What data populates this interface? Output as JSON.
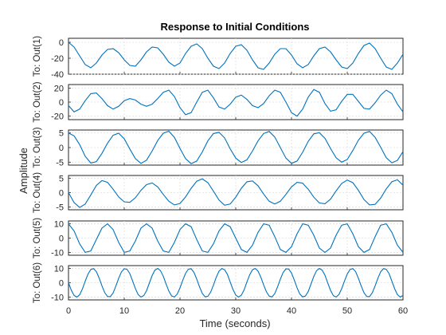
{
  "colors": {
    "trace": "#0072BD",
    "grid": "#dfdfdf",
    "axis": "#262626"
  },
  "chart_data": {
    "type": "line",
    "title": "Response to Initial Conditions",
    "xlabel": "Time (seconds)",
    "ylabel": "Amplitude",
    "xlim": [
      0,
      60
    ],
    "x_ticks": [
      "0",
      "10",
      "20",
      "30",
      "40",
      "50",
      "60"
    ],
    "grid": true,
    "series": [
      {
        "name": "To: Out(1)",
        "ylim": [
          -40,
          5
        ],
        "y_ticks": [
          {
            "v": 0,
            "t": "0"
          },
          {
            "v": -20,
            "t": "-20"
          },
          {
            "v": -40,
            "t": "-40"
          }
        ],
        "x": [
          0,
          1,
          2,
          3,
          4,
          5,
          6,
          7,
          8,
          9,
          10,
          11,
          12,
          13,
          14,
          15,
          16,
          17,
          18,
          19,
          20,
          21,
          22,
          23,
          24,
          25,
          26,
          27,
          28,
          29,
          30,
          31,
          32,
          33,
          34,
          35,
          36,
          37,
          38,
          39,
          40,
          41,
          42,
          43,
          44,
          45,
          46,
          47,
          48,
          49,
          50,
          51,
          52,
          53,
          54,
          55,
          56,
          57,
          58,
          59,
          60
        ],
        "y": [
          0,
          -6,
          -17,
          -28,
          -32,
          -26,
          -16,
          -9,
          -8,
          -13,
          -22,
          -29,
          -30,
          -22,
          -12,
          -6,
          -7,
          -15,
          -25,
          -30,
          -26,
          -14,
          -5,
          -2,
          -8,
          -20,
          -30,
          -33,
          -26,
          -14,
          -5,
          -3,
          -10,
          -22,
          -32,
          -34,
          -26,
          -15,
          -8,
          -8,
          -16,
          -27,
          -32,
          -28,
          -17,
          -8,
          -6,
          -12,
          -22,
          -31,
          -33,
          -26,
          -14,
          -4,
          -1,
          -8,
          -20,
          -31,
          -34,
          -26,
          -15
        ]
      },
      {
        "name": "To: Out(2)",
        "ylim": [
          -25,
          25
        ],
        "y_ticks": [
          {
            "v": 20,
            "t": "20"
          },
          {
            "v": 0,
            "t": "0"
          },
          {
            "v": -20,
            "t": "-20"
          }
        ],
        "x": [
          0,
          1,
          2,
          3,
          4,
          5,
          6,
          7,
          8,
          9,
          10,
          11,
          12,
          13,
          14,
          15,
          16,
          17,
          18,
          19,
          20,
          21,
          22,
          23,
          24,
          25,
          26,
          27,
          28,
          29,
          30,
          31,
          32,
          33,
          34,
          35,
          36,
          37,
          38,
          39,
          40,
          41,
          42,
          43,
          44,
          45,
          46,
          47,
          48,
          49,
          50,
          51,
          52,
          53,
          54,
          55,
          56,
          57,
          58,
          59,
          60
        ],
        "y": [
          -5,
          -14,
          -10,
          2,
          12,
          13,
          5,
          -5,
          -10,
          -6,
          2,
          5,
          3,
          -3,
          -6,
          -3,
          5,
          14,
          17,
          8,
          -8,
          -18,
          -15,
          0,
          14,
          17,
          6,
          -7,
          -10,
          -3,
          7,
          10,
          4,
          -5,
          -8,
          -2,
          9,
          17,
          14,
          0,
          -15,
          -20,
          -10,
          7,
          18,
          14,
          -2,
          -13,
          -11,
          1,
          11,
          11,
          1,
          -9,
          -10,
          -1,
          10,
          17,
          12,
          -3,
          -14
        ]
      },
      {
        "name": "To: Out(3)",
        "ylim": [
          -6,
          6
        ],
        "y_ticks": [
          {
            "v": 5,
            "t": "5"
          },
          {
            "v": 0,
            "t": "0"
          },
          {
            "v": -5,
            "t": "-5"
          }
        ],
        "x": [
          0,
          1,
          2,
          3,
          4,
          5,
          6,
          7,
          8,
          9,
          10,
          11,
          12,
          13,
          14,
          15,
          16,
          17,
          18,
          19,
          20,
          21,
          22,
          23,
          24,
          25,
          26,
          27,
          28,
          29,
          30,
          31,
          32,
          33,
          34,
          35,
          36,
          37,
          38,
          39,
          40,
          41,
          42,
          43,
          44,
          45,
          46,
          47,
          48,
          49,
          50,
          51,
          52,
          53,
          54,
          55,
          56,
          57,
          58,
          59,
          60
        ],
        "y": [
          5,
          4,
          1,
          -3,
          -5.3,
          -4.8,
          -2,
          1.5,
          4.2,
          4.9,
          3,
          -0.5,
          -3.8,
          -5.4,
          -4.3,
          -1.2,
          2.4,
          4.9,
          5.6,
          3.5,
          -0.3,
          -3.8,
          -5.5,
          -4.6,
          -1.5,
          2.3,
          4.8,
          5.2,
          3.3,
          -0.4,
          -3.6,
          -5.1,
          -4.2,
          -1.2,
          2.3,
          4.8,
          5.5,
          3.6,
          0,
          -3.6,
          -5.4,
          -4.6,
          -1.6,
          2.1,
          4.7,
          5.1,
          3.2,
          -0.3,
          -3.5,
          -5,
          -4.1,
          -1,
          2.5,
          4.9,
          5.5,
          3.5,
          0.1,
          -3.5,
          -5.2,
          -4.4,
          -1.4
        ]
      },
      {
        "name": "To: Out(4)",
        "ylim": [
          -6,
          6
        ],
        "y_ticks": [
          {
            "v": 5,
            "t": "5"
          },
          {
            "v": 0,
            "t": "0"
          },
          {
            "v": -5,
            "t": "-5"
          }
        ],
        "x": [
          0,
          1,
          2,
          3,
          4,
          5,
          6,
          7,
          8,
          9,
          10,
          11,
          12,
          13,
          14,
          15,
          16,
          17,
          18,
          19,
          20,
          21,
          22,
          23,
          24,
          25,
          26,
          27,
          28,
          29,
          30,
          31,
          32,
          33,
          34,
          35,
          36,
          37,
          38,
          39,
          40,
          41,
          42,
          43,
          44,
          45,
          46,
          47,
          48,
          49,
          50,
          51,
          52,
          53,
          54,
          55,
          56,
          57,
          58,
          59,
          60
        ],
        "y": [
          0,
          -3.5,
          -5.2,
          -4,
          -0.8,
          2.5,
          4.2,
          3.6,
          1.2,
          -1.5,
          -3.2,
          -3.4,
          -1.8,
          0.8,
          2.8,
          3.4,
          2,
          -0.6,
          -3,
          -4.3,
          -3.8,
          -1.5,
          1.5,
          4,
          4.8,
          3.5,
          0.5,
          -2.6,
          -4.4,
          -4,
          -1.6,
          1.5,
          3.8,
          4.1,
          2.4,
          -0.5,
          -3,
          -4,
          -3,
          -0.6,
          2,
          3.6,
          3.3,
          1.2,
          -1.6,
          -3.6,
          -3.9,
          -2.3,
          0.6,
          3.2,
          4.4,
          3.5,
          0.8,
          -2.4,
          -4.3,
          -4.1,
          -1.9,
          1.3,
          3.8,
          4.5,
          2.6
        ]
      },
      {
        "name": "To: Out(5)",
        "ylim": [
          -12,
          12
        ],
        "y_ticks": [
          {
            "v": 10,
            "t": "10"
          },
          {
            "v": 0,
            "t": "0"
          },
          {
            "v": -10,
            "t": "-10"
          }
        ],
        "x": [
          0,
          1,
          2,
          3,
          4,
          5,
          6,
          7,
          8,
          9,
          10,
          11,
          12,
          13,
          14,
          15,
          16,
          17,
          18,
          19,
          20,
          21,
          22,
          23,
          24,
          25,
          26,
          27,
          28,
          29,
          30,
          31,
          32,
          33,
          34,
          35,
          36,
          37,
          38,
          39,
          40,
          41,
          42,
          43,
          44,
          45,
          46,
          47,
          48,
          49,
          50,
          51,
          52,
          53,
          54,
          55,
          56,
          57,
          58,
          59,
          60
        ],
        "y": [
          10,
          5,
          -4,
          -10,
          -9,
          -1,
          7,
          10,
          6,
          -3,
          -10,
          -9,
          -2,
          7,
          10,
          7,
          -2,
          -9,
          -10,
          -3,
          6,
          10,
          8,
          -1,
          -9,
          -10,
          -4,
          5,
          10,
          8,
          0,
          -8,
          -10,
          -5,
          4,
          10,
          9,
          1,
          -8,
          -10,
          -6,
          3,
          10,
          9,
          2,
          -7,
          -10,
          -7,
          2,
          9,
          10,
          3,
          -6,
          -10,
          -8,
          1,
          9,
          10,
          4,
          -5,
          -10
        ]
      },
      {
        "name": "To: Out(6)",
        "ylim": [
          -12,
          12
        ],
        "y_ticks": [
          {
            "v": 10,
            "t": "10"
          },
          {
            "v": 0,
            "t": "0"
          },
          {
            "v": -10,
            "t": "-10"
          }
        ],
        "x": [
          0,
          0.5,
          1,
          1.5,
          2,
          2.5,
          3,
          3.5,
          4,
          4.5,
          5,
          5.5,
          6,
          6.5,
          7,
          7.5,
          8,
          8.5,
          9,
          9.5,
          10,
          10.5,
          11,
          11.5,
          12,
          12.5,
          13,
          13.5,
          14,
          14.5,
          15,
          15.5,
          16,
          16.5,
          17,
          17.5,
          18,
          18.5,
          19,
          19.5,
          20,
          20.5,
          21,
          21.5,
          22,
          22.5,
          23,
          23.5,
          24,
          24.5,
          25,
          25.5,
          26,
          26.5,
          27,
          27.5,
          28,
          28.5,
          29,
          29.5,
          30,
          30.5,
          31,
          31.5,
          32,
          32.5,
          33,
          33.5,
          34,
          34.5,
          35,
          35.5,
          36,
          36.5,
          37,
          37.5,
          38,
          38.5,
          39,
          39.5,
          40,
          40.5,
          41,
          41.5,
          42,
          42.5,
          43,
          43.5,
          44,
          44.5,
          45,
          45.5,
          46,
          46.5,
          47,
          47.5,
          48,
          48.5,
          49,
          49.5,
          50,
          50.5,
          51,
          51.5,
          52,
          52.5,
          53,
          53.5,
          54,
          54.5,
          55,
          55.5,
          56,
          56.5,
          57,
          57.5,
          58,
          58.5,
          59,
          59.5,
          60
        ],
        "y": [
          0,
          -5.2,
          -8.9,
          -10,
          -8.4,
          -4.3,
          1.1,
          6.1,
          9.3,
          9.9,
          7.8,
          3.3,
          -2.1,
          -6.9,
          -9.6,
          -9.7,
          -7.2,
          -2.3,
          3.1,
          7.6,
          9.8,
          9.4,
          6.4,
          1.3,
          -4.1,
          -8.3,
          -10,
          -9,
          -5.6,
          -0.3,
          5,
          8.8,
          10,
          8.5,
          4.6,
          -0.8,
          -5.8,
          -9.2,
          -10,
          -7.9,
          -3.6,
          1.8,
          6.6,
          9.5,
          9.8,
          7.3,
          2.6,
          -2.8,
          -7.4,
          -9.8,
          -9.5,
          -6.6,
          -1.6,
          3.8,
          8.1,
          10,
          9.1,
          5.9,
          0.6,
          -4.7,
          -8.6,
          -10,
          -8.7,
          -5,
          0.5,
          5.5,
          9.1,
          10,
          8.1,
          3.9,
          -1.5,
          -6.3,
          -9.4,
          -9.9,
          -7.6,
          -2.9,
          2.5,
          7.2,
          9.7,
          9.6,
          6.8,
          1.9,
          -3.5,
          -7.9,
          -9.9,
          -9.2,
          -6.2,
          -0.9,
          4.4,
          8.5,
          10,
          8.8,
          5.3,
          -0.1,
          -5.3,
          -9,
          -10,
          -8.3,
          -4.2,
          1.2,
          6.1,
          9.3,
          9.9,
          7.8,
          3.2,
          -2.2,
          -7,
          -9.6,
          -9.7,
          -7,
          -2.2,
          3.2,
          7.7,
          9.9,
          9.4,
          6.4,
          1.2,
          -4.2,
          -8.3,
          -10,
          -8.9
        ]
      }
    ]
  }
}
